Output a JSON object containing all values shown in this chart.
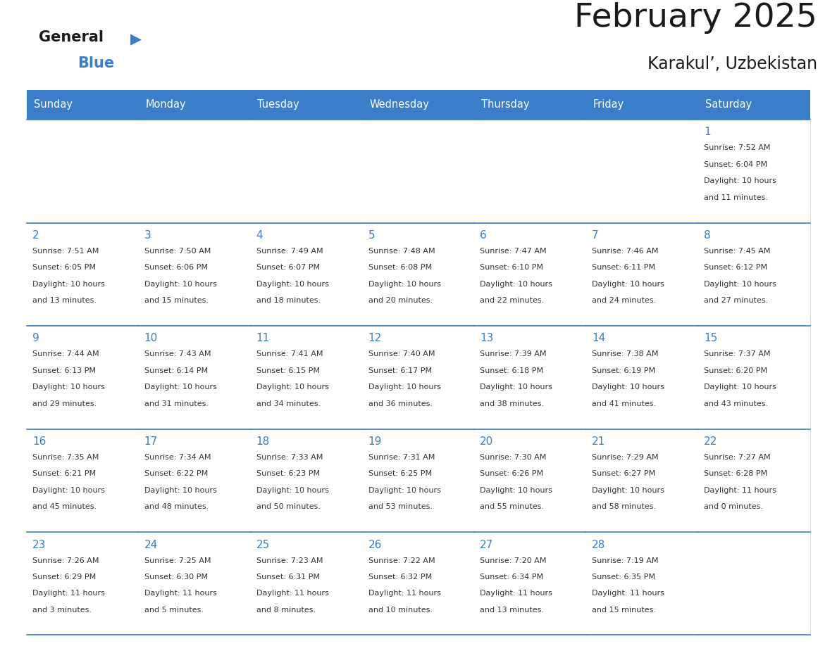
{
  "title": "February 2025",
  "subtitle": "Karakul’, Uzbekistan",
  "header_color": "#3A7DC9",
  "header_text_color": "#FFFFFF",
  "background_color": "#FFFFFF",
  "day_number_color": "#3A7DC9",
  "text_color": "#333333",
  "days_of_week": [
    "Sunday",
    "Monday",
    "Tuesday",
    "Wednesday",
    "Thursday",
    "Friday",
    "Saturday"
  ],
  "calendar_data": [
    [
      {
        "day": null,
        "sunrise": null,
        "sunset": null,
        "daylight": null
      },
      {
        "day": null,
        "sunrise": null,
        "sunset": null,
        "daylight": null
      },
      {
        "day": null,
        "sunrise": null,
        "sunset": null,
        "daylight": null
      },
      {
        "day": null,
        "sunrise": null,
        "sunset": null,
        "daylight": null
      },
      {
        "day": null,
        "sunrise": null,
        "sunset": null,
        "daylight": null
      },
      {
        "day": null,
        "sunrise": null,
        "sunset": null,
        "daylight": null
      },
      {
        "day": 1,
        "sunrise": "7:52 AM",
        "sunset": "6:04 PM",
        "daylight": "10 hours\nand 11 minutes."
      }
    ],
    [
      {
        "day": 2,
        "sunrise": "7:51 AM",
        "sunset": "6:05 PM",
        "daylight": "10 hours\nand 13 minutes."
      },
      {
        "day": 3,
        "sunrise": "7:50 AM",
        "sunset": "6:06 PM",
        "daylight": "10 hours\nand 15 minutes."
      },
      {
        "day": 4,
        "sunrise": "7:49 AM",
        "sunset": "6:07 PM",
        "daylight": "10 hours\nand 18 minutes."
      },
      {
        "day": 5,
        "sunrise": "7:48 AM",
        "sunset": "6:08 PM",
        "daylight": "10 hours\nand 20 minutes."
      },
      {
        "day": 6,
        "sunrise": "7:47 AM",
        "sunset": "6:10 PM",
        "daylight": "10 hours\nand 22 minutes."
      },
      {
        "day": 7,
        "sunrise": "7:46 AM",
        "sunset": "6:11 PM",
        "daylight": "10 hours\nand 24 minutes."
      },
      {
        "day": 8,
        "sunrise": "7:45 AM",
        "sunset": "6:12 PM",
        "daylight": "10 hours\nand 27 minutes."
      }
    ],
    [
      {
        "day": 9,
        "sunrise": "7:44 AM",
        "sunset": "6:13 PM",
        "daylight": "10 hours\nand 29 minutes."
      },
      {
        "day": 10,
        "sunrise": "7:43 AM",
        "sunset": "6:14 PM",
        "daylight": "10 hours\nand 31 minutes."
      },
      {
        "day": 11,
        "sunrise": "7:41 AM",
        "sunset": "6:15 PM",
        "daylight": "10 hours\nand 34 minutes."
      },
      {
        "day": 12,
        "sunrise": "7:40 AM",
        "sunset": "6:17 PM",
        "daylight": "10 hours\nand 36 minutes."
      },
      {
        "day": 13,
        "sunrise": "7:39 AM",
        "sunset": "6:18 PM",
        "daylight": "10 hours\nand 38 minutes."
      },
      {
        "day": 14,
        "sunrise": "7:38 AM",
        "sunset": "6:19 PM",
        "daylight": "10 hours\nand 41 minutes."
      },
      {
        "day": 15,
        "sunrise": "7:37 AM",
        "sunset": "6:20 PM",
        "daylight": "10 hours\nand 43 minutes."
      }
    ],
    [
      {
        "day": 16,
        "sunrise": "7:35 AM",
        "sunset": "6:21 PM",
        "daylight": "10 hours\nand 45 minutes."
      },
      {
        "day": 17,
        "sunrise": "7:34 AM",
        "sunset": "6:22 PM",
        "daylight": "10 hours\nand 48 minutes."
      },
      {
        "day": 18,
        "sunrise": "7:33 AM",
        "sunset": "6:23 PM",
        "daylight": "10 hours\nand 50 minutes."
      },
      {
        "day": 19,
        "sunrise": "7:31 AM",
        "sunset": "6:25 PM",
        "daylight": "10 hours\nand 53 minutes."
      },
      {
        "day": 20,
        "sunrise": "7:30 AM",
        "sunset": "6:26 PM",
        "daylight": "10 hours\nand 55 minutes."
      },
      {
        "day": 21,
        "sunrise": "7:29 AM",
        "sunset": "6:27 PM",
        "daylight": "10 hours\nand 58 minutes."
      },
      {
        "day": 22,
        "sunrise": "7:27 AM",
        "sunset": "6:28 PM",
        "daylight": "11 hours\nand 0 minutes."
      }
    ],
    [
      {
        "day": 23,
        "sunrise": "7:26 AM",
        "sunset": "6:29 PM",
        "daylight": "11 hours\nand 3 minutes."
      },
      {
        "day": 24,
        "sunrise": "7:25 AM",
        "sunset": "6:30 PM",
        "daylight": "11 hours\nand 5 minutes."
      },
      {
        "day": 25,
        "sunrise": "7:23 AM",
        "sunset": "6:31 PM",
        "daylight": "11 hours\nand 8 minutes."
      },
      {
        "day": 26,
        "sunrise": "7:22 AM",
        "sunset": "6:32 PM",
        "daylight": "11 hours\nand 10 minutes."
      },
      {
        "day": 27,
        "sunrise": "7:20 AM",
        "sunset": "6:34 PM",
        "daylight": "11 hours\nand 13 minutes."
      },
      {
        "day": 28,
        "sunrise": "7:19 AM",
        "sunset": "6:35 PM",
        "daylight": "11 hours\nand 15 minutes."
      },
      {
        "day": null,
        "sunrise": null,
        "sunset": null,
        "daylight": null
      }
    ]
  ]
}
